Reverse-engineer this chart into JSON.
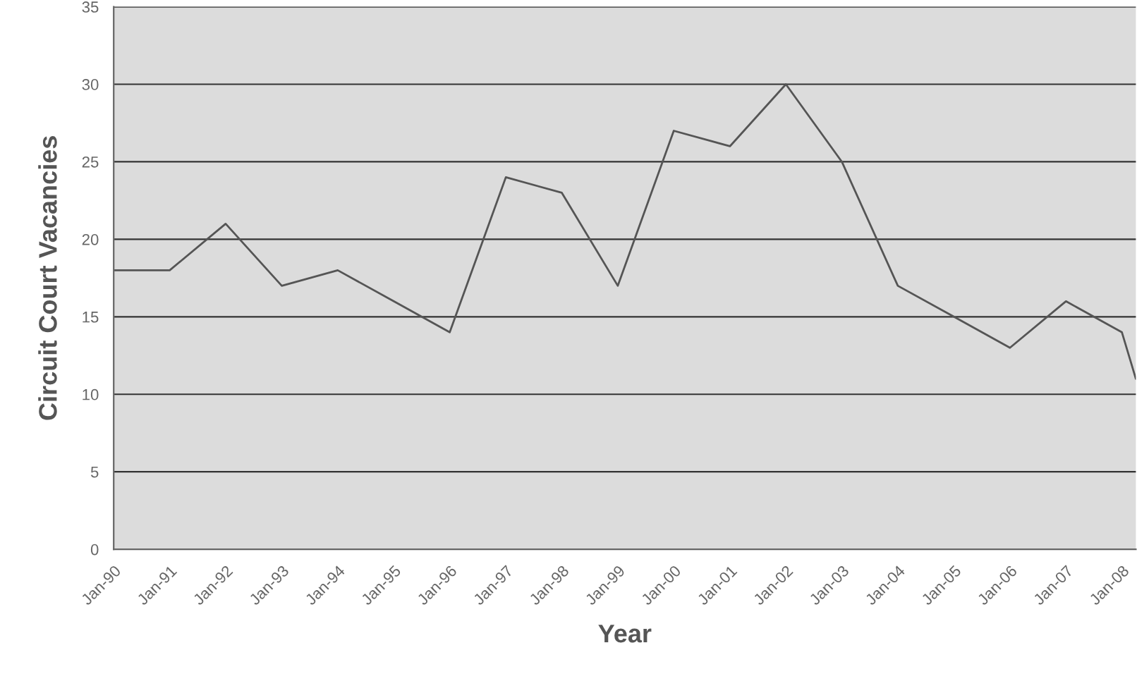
{
  "chart_data": {
    "type": "line",
    "xlabel": "Year",
    "ylabel": "Circuit Court Vacancies",
    "x": [
      "1990-01",
      "1991-01",
      "1992-01",
      "1993-01",
      "1994-01",
      "1995-01",
      "1996-01",
      "1997-01",
      "1998-01",
      "1999-01",
      "2000-01",
      "2001-01",
      "2002-01",
      "2003-01",
      "2004-01",
      "2005-01",
      "2006-01",
      "2007-01",
      "2008-01",
      "2008-04"
    ],
    "series": [
      {
        "color": "#555555",
        "values": [
          18,
          18,
          21,
          17,
          18,
          16,
          14,
          24,
          23,
          17,
          27,
          26,
          30,
          25,
          17,
          15,
          13,
          16,
          14,
          11
        ]
      }
    ],
    "xlim": [
      "1990-01",
      "2008-04"
    ],
    "xticks": [
      {
        "value": "1990-01",
        "label": "Jan-90"
      },
      {
        "value": "1991-01",
        "label": "Jan-91"
      },
      {
        "value": "1992-01",
        "label": "Jan-92"
      },
      {
        "value": "1993-01",
        "label": "Jan-93"
      },
      {
        "value": "1994-01",
        "label": "Jan-94"
      },
      {
        "value": "1995-01",
        "label": "Jan-95"
      },
      {
        "value": "1996-01",
        "label": "Jan-96"
      },
      {
        "value": "1997-01",
        "label": "Jan-97"
      },
      {
        "value": "1998-01",
        "label": "Jan-98"
      },
      {
        "value": "1999-01",
        "label": "Jan-99"
      },
      {
        "value": "2000-01",
        "label": "Jan-00"
      },
      {
        "value": "2001-01",
        "label": "Jan-01"
      },
      {
        "value": "2002-01",
        "label": "Jan-02"
      },
      {
        "value": "2003-01",
        "label": "Jan-03"
      },
      {
        "value": "2004-01",
        "label": "Jan-04"
      },
      {
        "value": "2005-01",
        "label": "Jan-05"
      },
      {
        "value": "2006-01",
        "label": "Jan-06"
      },
      {
        "value": "2007-01",
        "label": "Jan-07"
      },
      {
        "value": "2008-01",
        "label": "Jan-08"
      }
    ],
    "ylim": [
      0,
      35
    ],
    "yticks": [
      0,
      5,
      10,
      15,
      20,
      25,
      30,
      35
    ],
    "grid": "y",
    "marker": "none",
    "line_style": "solid"
  }
}
